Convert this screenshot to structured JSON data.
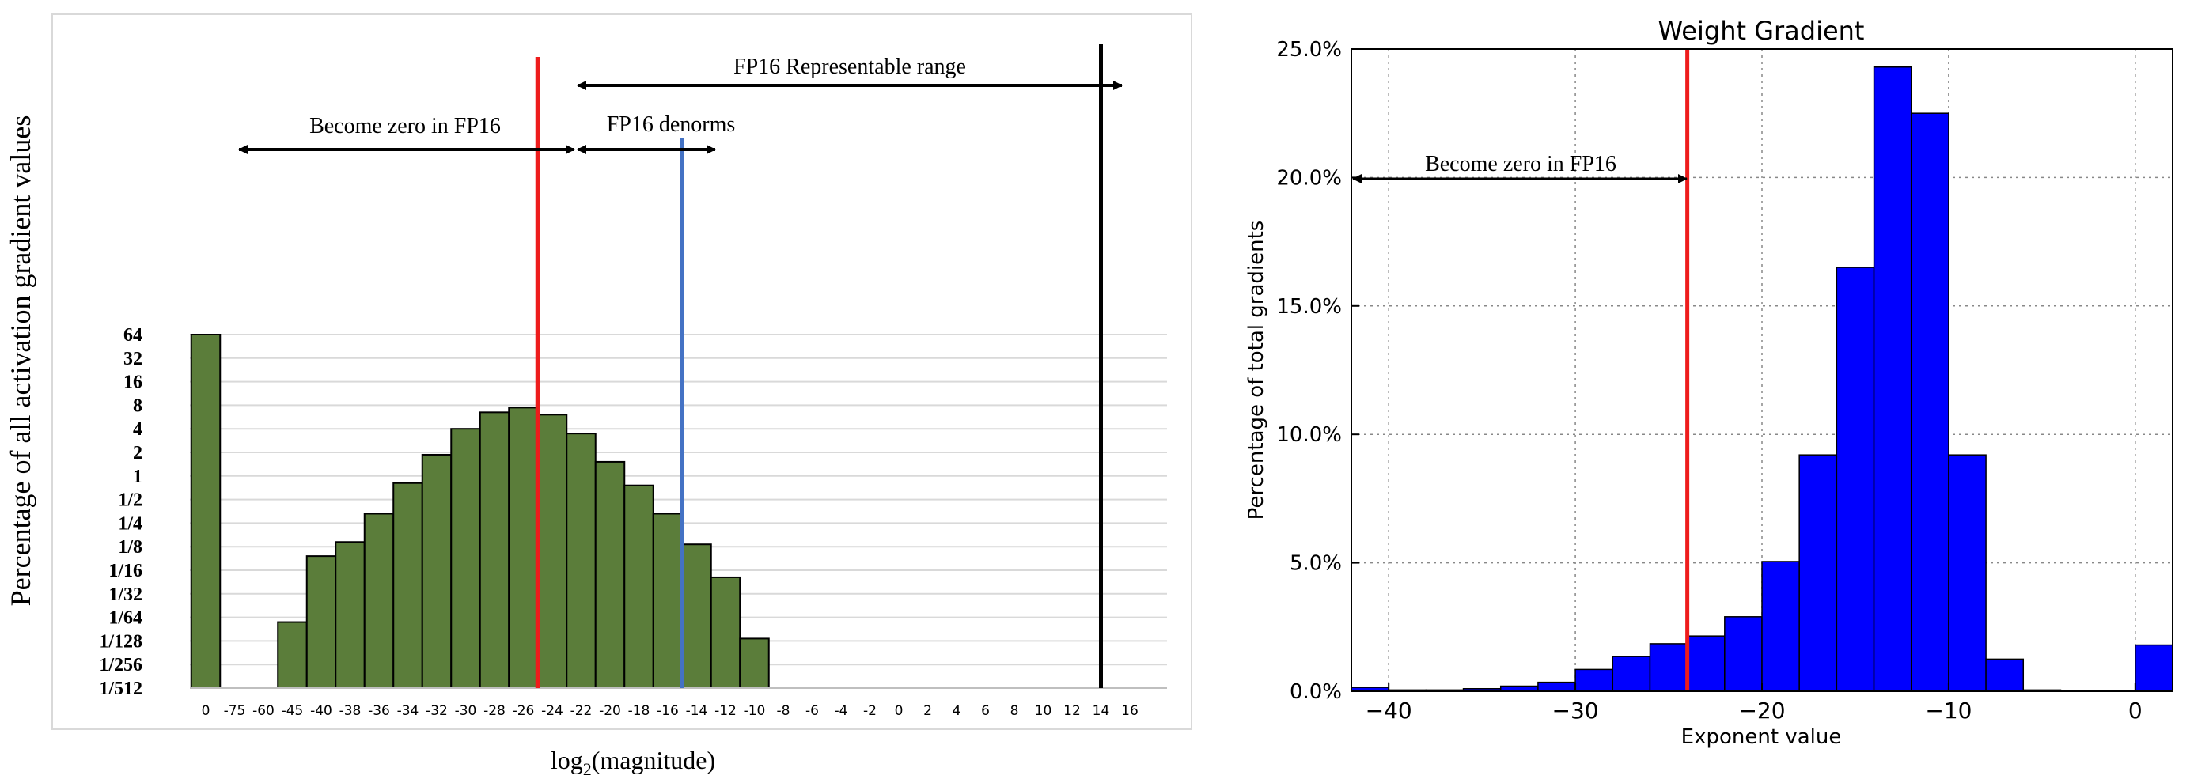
{
  "chart_data": [
    {
      "type": "bar",
      "title": "",
      "xlabel_base": "log",
      "xlabel_sub": "2",
      "xlabel_rest": "(magnitude)",
      "ylabel": "Percentage of all activation gradient values",
      "y_scale": "log2",
      "y_ticks": [
        "1/512",
        "1/256",
        "1/128",
        "1/64",
        "1/32",
        "1/16",
        "1/8",
        "1/4",
        "1/2",
        "1",
        "2",
        "4",
        "8",
        "16",
        "32",
        "64"
      ],
      "x_ticks": [
        "0",
        "-75",
        "-60",
        "-45",
        "-40",
        "-38",
        "-36",
        "-34",
        "-32",
        "-30",
        "-28",
        "-26",
        "-24",
        "-22",
        "-20",
        "-18",
        "-16",
        "-14",
        "-12",
        "-10",
        "-8",
        "-6",
        "-4",
        "-2",
        "0",
        "2",
        "4",
        "6",
        "8",
        "10",
        "12",
        "14",
        "16"
      ],
      "bars": [
        {
          "slot": 0,
          "log2_value": 6.0
        },
        {
          "slot": 3,
          "log2_value": -6.2
        },
        {
          "slot": 4,
          "log2_value": -3.4
        },
        {
          "slot": 5,
          "log2_value": -2.8
        },
        {
          "slot": 6,
          "log2_value": -1.6
        },
        {
          "slot": 7,
          "log2_value": -0.3
        },
        {
          "slot": 8,
          "log2_value": 0.9
        },
        {
          "slot": 9,
          "log2_value": 2.0
        },
        {
          "slot": 10,
          "log2_value": 2.7
        },
        {
          "slot": 11,
          "log2_value": 2.9
        },
        {
          "slot": 12,
          "log2_value": 2.6
        },
        {
          "slot": 13,
          "log2_value": 1.8
        },
        {
          "slot": 14,
          "log2_value": 0.6
        },
        {
          "slot": 15,
          "log2_value": -0.4
        },
        {
          "slot": 16,
          "log2_value": -1.6
        },
        {
          "slot": 17,
          "log2_value": -2.9
        },
        {
          "slot": 18,
          "log2_value": -4.3
        },
        {
          "slot": 19,
          "log2_value": -6.9
        }
      ],
      "markers": [
        {
          "name": "fp16-zero-threshold",
          "at_slot_edge": 12,
          "color": "#ee1c1c"
        },
        {
          "name": "fp16-denorm-threshold",
          "at_slot_edge": 17,
          "color": "#4472c4"
        },
        {
          "name": "fp16-max",
          "at_slot_edge": 31.5,
          "color": "#000000"
        }
      ],
      "annotations": {
        "representable": "FP16 Representable range",
        "become_zero": "Become zero in FP16",
        "denorms": "FP16 denorms"
      },
      "bar_color": "#5b7d3a"
    },
    {
      "type": "bar",
      "title": "Weight Gradient",
      "xlabel": "Exponent value",
      "ylabel": "Percentage of total gradients",
      "xlim": [
        -42,
        2
      ],
      "ylim": [
        0,
        25
      ],
      "x_ticks": [
        -40,
        -30,
        -20,
        -10,
        0
      ],
      "x_tick_labels": [
        "−40",
        "−30",
        "−20",
        "−10",
        "0"
      ],
      "y_ticks": [
        0,
        5,
        10,
        15,
        20,
        25
      ],
      "y_tick_labels": [
        "0.0%",
        "5.0%",
        "10.0%",
        "15.0%",
        "20.0%",
        "25.0%"
      ],
      "bin_edges": [
        -42,
        -40,
        -38,
        -36,
        -34,
        -32,
        -30,
        -28,
        -26,
        -24,
        -22,
        -20,
        -18,
        -16,
        -14,
        -12,
        -10,
        -8,
        -6,
        -4,
        -2,
        0,
        2
      ],
      "values": [
        0.15,
        0.05,
        0.05,
        0.1,
        0.2,
        0.35,
        0.85,
        1.35,
        1.85,
        2.15,
        2.9,
        5.05,
        9.2,
        16.5,
        24.3,
        22.5,
        9.2,
        1.25,
        0.05,
        0.0,
        0.0,
        1.8
      ],
      "zero_threshold": -24,
      "annotation": "Become zero in FP16",
      "bar_color": "#0000ff",
      "marker_color": "#ee1c1c"
    }
  ]
}
